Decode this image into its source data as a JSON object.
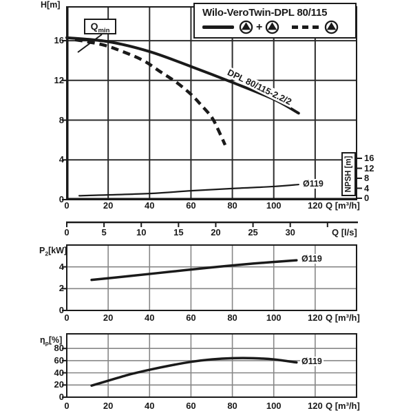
{
  "colors": {
    "ink": "#1a1a1a",
    "paper": "#ffffff",
    "grid_gray": "#868686"
  },
  "legend": {
    "title": "Wilo-VeroTwin-DPL 80/115",
    "plus": "+"
  },
  "chart_data": [
    {
      "id": "h_q_chart",
      "type": "line",
      "ylabel": "H[m]",
      "xlabel": "Q [m³/h]",
      "y2label": "NPSH [m]",
      "xlim": [
        0,
        140
      ],
      "ylim": [
        0,
        19.4
      ],
      "y2lim": [
        0,
        16
      ],
      "xticks": [
        0,
        20,
        40,
        60,
        80,
        100,
        120
      ],
      "yticks": [
        0,
        4,
        8,
        12,
        16
      ],
      "y2ticks": [
        0,
        4,
        8,
        12,
        16
      ],
      "grid": true,
      "annotations": [
        {
          "base": "Q",
          "sub": "min"
        }
      ],
      "series": [
        {
          "name": "two-pump-head-curve",
          "label": "DPL 80/115-2.2/2",
          "style": "solid",
          "width": 4,
          "x": [
            0,
            20,
            40,
            60,
            80,
            100,
            112
          ],
          "y": [
            16.3,
            15.9,
            14.9,
            13.4,
            11.8,
            10.1,
            8.7
          ]
        },
        {
          "name": "single-pump-head-curve",
          "style": "dashed",
          "width": 4.5,
          "x": [
            4,
            17,
            27,
            37,
            45,
            53,
            60,
            65,
            70,
            73,
            76.5
          ],
          "y": [
            16.1,
            15.6,
            14.9,
            14.0,
            12.9,
            11.8,
            10.6,
            9.5,
            8.3,
            7.1,
            5.5
          ]
        },
        {
          "name": "npsh-curve",
          "label": "Ø119",
          "style": "solid",
          "width": 2.2,
          "yaxis": "y2",
          "x": [
            6,
            40,
            60,
            80,
            100,
            112
          ],
          "y": [
            1.0,
            1.9,
            3.0,
            3.9,
            4.7,
            5.5
          ]
        }
      ]
    },
    {
      "id": "q_ls_scale",
      "type": "axis",
      "xlabel": "Q [l/s]",
      "xlim": [
        0,
        38.9
      ],
      "xticks": [
        0,
        5,
        10,
        15,
        20,
        25,
        30
      ],
      "extra_ticks": [
        35
      ]
    },
    {
      "id": "p2_chart",
      "type": "line",
      "ylabel": "P2 [kW]",
      "ylabel_base": "P",
      "ylabel_sub": "2",
      "ylabel_unit": "[kW]",
      "xlabel": "Q [m³/h]",
      "xlim": [
        0,
        140
      ],
      "ylim": [
        0,
        6
      ],
      "xticks": [
        0,
        20,
        40,
        60,
        80,
        100,
        120
      ],
      "yticks": [
        0,
        2,
        4
      ],
      "grid": true,
      "series": [
        {
          "name": "shaft-power-curve",
          "label": "Ø119",
          "style": "solid",
          "width": 3.5,
          "x": [
            12,
            30,
            50,
            70,
            90,
            111
          ],
          "y": [
            2.8,
            3.15,
            3.55,
            3.95,
            4.3,
            4.6
          ]
        }
      ]
    },
    {
      "id": "eta_chart",
      "type": "line",
      "ylabel": "ηp [%]",
      "ylabel_base": "η",
      "ylabel_sub": "p",
      "ylabel_unit": "[%]",
      "xlabel": "Q [m³/h]",
      "xlim": [
        0,
        140
      ],
      "ylim": [
        0,
        104
      ],
      "xticks": [
        0,
        20,
        40,
        60,
        80,
        100,
        120
      ],
      "yticks": [
        0,
        20,
        40,
        60,
        80
      ],
      "grid": true,
      "series": [
        {
          "name": "efficiency-curve",
          "label": "Ø119",
          "style": "solid",
          "width": 3.5,
          "x": [
            12,
            20,
            30,
            40,
            50,
            60,
            70,
            80,
            90,
            100,
            111
          ],
          "y": [
            19,
            27,
            37,
            45,
            52,
            58,
            62,
            64,
            64,
            62,
            57
          ]
        }
      ]
    }
  ]
}
